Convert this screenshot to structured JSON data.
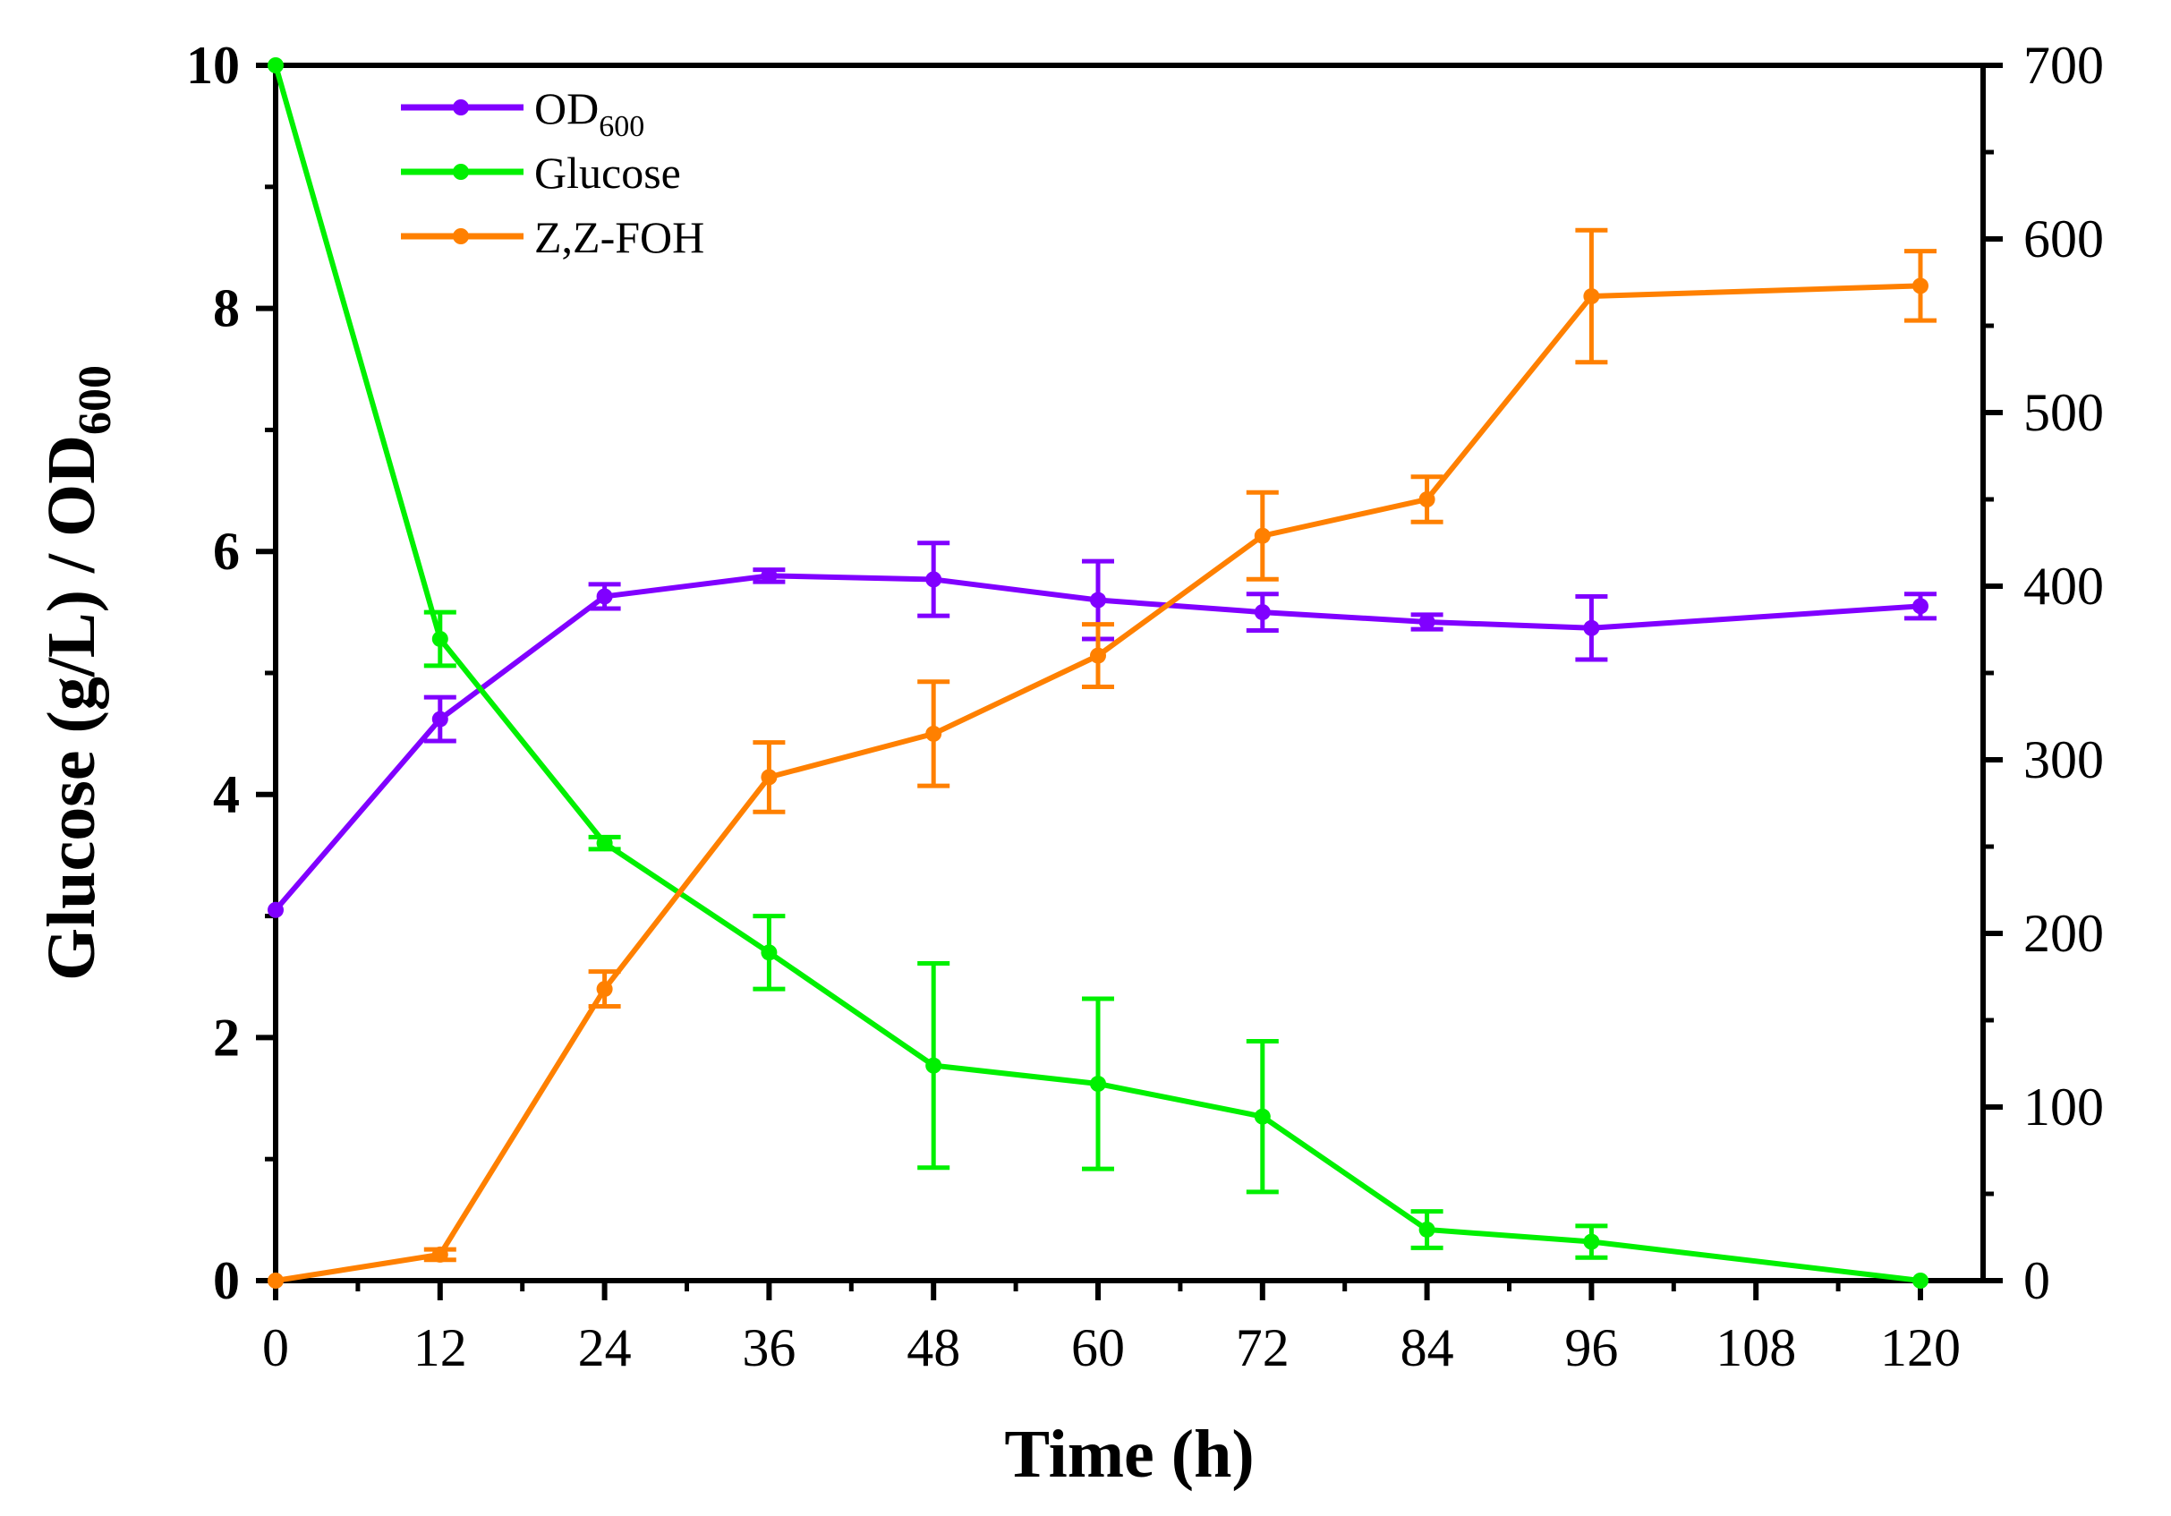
{
  "chart_data": {
    "type": "line",
    "title": "",
    "xlabel": "Time (h)",
    "ylabel": {
      "main": "Glucose (g/L) / OD",
      "sub": "600"
    },
    "y2label": "",
    "xlim": [
      0,
      120
    ],
    "ylim": [
      0,
      10
    ],
    "y2lim": [
      0,
      700
    ],
    "xticks": [
      0,
      12,
      24,
      36,
      48,
      60,
      72,
      84,
      96,
      108,
      120
    ],
    "yticks": [
      0,
      2,
      4,
      6,
      8,
      10
    ],
    "y2ticks": [
      0,
      100,
      200,
      300,
      400,
      500,
      600,
      700
    ],
    "legend_position": "top-left",
    "x": [
      0,
      12,
      24,
      36,
      48,
      60,
      72,
      84,
      96,
      120
    ],
    "series": [
      {
        "name": "OD",
        "name_sub": "600",
        "axis": "left",
        "color": "#8000ff",
        "values": [
          3.05,
          4.62,
          5.63,
          5.8,
          5.77,
          5.6,
          5.5,
          5.42,
          5.37,
          5.55
        ],
        "errors": [
          0,
          0.18,
          0.1,
          0.05,
          0.3,
          0.32,
          0.15,
          0.06,
          0.26,
          0.1
        ]
      },
      {
        "name": "Glucose",
        "name_sub": "",
        "axis": "left",
        "color": "#00f000",
        "values": [
          10,
          5.28,
          3.6,
          2.7,
          1.77,
          1.62,
          1.35,
          0.42,
          0.32,
          0
        ],
        "errors": [
          0,
          0.22,
          0.05,
          0.3,
          0.84,
          0.7,
          0.62,
          0.15,
          0.13,
          0
        ]
      },
      {
        "name": "Z,Z-FOH",
        "name_sub": "",
        "axis": "right",
        "color": "#ff8000",
        "values": [
          0,
          15,
          168,
          290,
          315,
          360,
          429,
          450,
          567,
          573
        ],
        "errors": [
          0,
          3,
          10,
          20,
          30,
          18,
          25,
          13,
          38,
          20
        ]
      }
    ]
  }
}
